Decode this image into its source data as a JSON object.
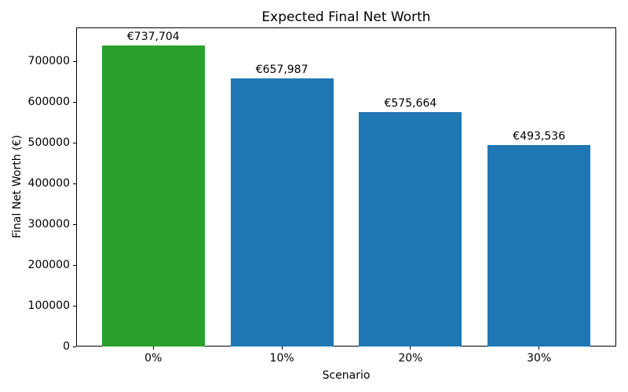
{
  "chart_data": {
    "type": "bar",
    "title": "Expected Final Net Worth",
    "xlabel": "Scenario",
    "ylabel": "Final Net Worth (€)",
    "categories": [
      "0%",
      "10%",
      "20%",
      "30%"
    ],
    "values": [
      737704,
      657987,
      575664,
      493536
    ],
    "value_labels": [
      "€737,704",
      "€657,987",
      "€575,664",
      "€493,536"
    ],
    "bar_colors": [
      "#2ca02c",
      "#1f77b4",
      "#1f77b4",
      "#1f77b4"
    ],
    "ylim": [
      0,
      782700
    ],
    "yticks": [
      0,
      100000,
      200000,
      300000,
      400000,
      500000,
      600000,
      700000
    ],
    "bar_width_fraction": 0.8,
    "grid": false,
    "legend": "none",
    "background_color": "#ffffff",
    "spine_color": "#000000"
  }
}
